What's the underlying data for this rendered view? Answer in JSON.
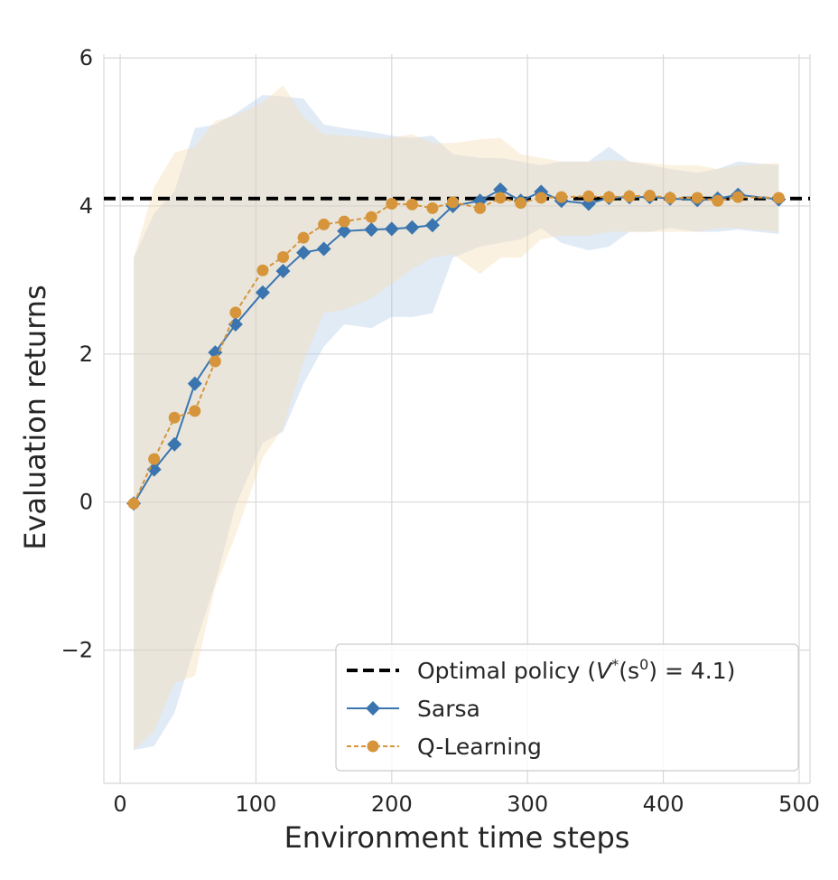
{
  "chart_data": {
    "type": "line",
    "title": "",
    "xlabel": "Environment time steps",
    "ylabel": "Evaluation returns",
    "xlim": [
      -12,
      508
    ],
    "ylim": [
      -3.8,
      6.05
    ],
    "grid": true,
    "legend_position": "lower-right",
    "x_ticks": [
      {
        "value": 0,
        "label": "0"
      },
      {
        "value": 100,
        "label": "100"
      },
      {
        "value": 200,
        "label": "200"
      },
      {
        "value": 300,
        "label": "300"
      },
      {
        "value": 400,
        "label": "400"
      },
      {
        "value": 500,
        "label": "500"
      }
    ],
    "y_ticks": [
      {
        "value": -2,
        "label": "−2"
      },
      {
        "value": 0,
        "label": "0"
      },
      {
        "value": 2,
        "label": "2"
      },
      {
        "value": 4,
        "label": "4"
      },
      {
        "value": 6,
        "label": "6"
      }
    ],
    "optimal": {
      "name_prefix": "Optimal policy (",
      "name_math": "V",
      "name_sup": "*",
      "name_arg": "(s",
      "name_arg_sup": "0",
      "name_value": ") = 4.1)",
      "value": 4.1,
      "color": "#000000"
    },
    "series": [
      {
        "name": "Sarsa",
        "color": "#3a75b0",
        "marker": "diamond",
        "line_style": "solid",
        "band_color": "#a9c6e5",
        "x": [
          10,
          25,
          40,
          55,
          70,
          85,
          105,
          120,
          135,
          150,
          165,
          185,
          200,
          215,
          230,
          245,
          265,
          280,
          295,
          310,
          325,
          345,
          360,
          375,
          390,
          405,
          425,
          440,
          455,
          485
        ],
        "y": [
          -0.02,
          0.44,
          0.78,
          1.6,
          2.02,
          2.4,
          2.83,
          3.12,
          3.37,
          3.42,
          3.66,
          3.68,
          3.69,
          3.71,
          3.74,
          4.0,
          4.07,
          4.22,
          4.07,
          4.19,
          4.07,
          4.03,
          4.11,
          4.12,
          4.12,
          4.1,
          4.08,
          4.1,
          4.15,
          4.09
        ],
        "y_low": [
          -3.35,
          -3.3,
          -2.85,
          -1.95,
          -1.1,
          -0.05,
          0.8,
          0.95,
          1.6,
          2.1,
          2.4,
          2.35,
          2.5,
          2.5,
          2.55,
          3.3,
          3.45,
          3.5,
          3.55,
          3.7,
          3.5,
          3.4,
          3.45,
          3.65,
          3.65,
          3.7,
          3.65,
          3.65,
          3.68,
          3.62
        ],
        "y_high": [
          3.3,
          3.9,
          4.2,
          5.05,
          5.1,
          5.25,
          5.5,
          5.48,
          5.45,
          5.1,
          5.05,
          5.0,
          4.95,
          4.92,
          4.95,
          4.7,
          4.65,
          4.65,
          4.6,
          4.55,
          4.6,
          4.6,
          4.8,
          4.6,
          4.55,
          4.5,
          4.45,
          4.5,
          4.6,
          4.55
        ]
      },
      {
        "name": "Q-Learning",
        "color": "#d6953b",
        "marker": "circle",
        "line_style": "dashed",
        "band_color": "#f6ddb4",
        "x": [
          10,
          25,
          40,
          55,
          70,
          85,
          105,
          120,
          135,
          150,
          165,
          185,
          200,
          215,
          230,
          245,
          265,
          280,
          295,
          310,
          325,
          345,
          360,
          375,
          390,
          405,
          425,
          440,
          455,
          485
        ],
        "y": [
          -0.02,
          0.58,
          1.14,
          1.23,
          1.9,
          2.56,
          3.13,
          3.31,
          3.57,
          3.75,
          3.79,
          3.85,
          4.03,
          4.02,
          3.97,
          4.05,
          3.97,
          4.11,
          4.04,
          4.11,
          4.12,
          4.13,
          4.12,
          4.13,
          4.14,
          4.11,
          4.11,
          4.07,
          4.12,
          4.11
        ],
        "y_low": [
          -3.35,
          -3.1,
          -2.45,
          -2.35,
          -1.15,
          -0.45,
          0.6,
          1.0,
          1.9,
          2.55,
          2.6,
          2.75,
          2.95,
          3.15,
          3.3,
          3.35,
          3.08,
          3.3,
          3.3,
          3.55,
          3.6,
          3.6,
          3.65,
          3.65,
          3.65,
          3.65,
          3.65,
          3.7,
          3.7,
          3.65
        ],
        "y_high": [
          3.3,
          4.25,
          4.72,
          4.8,
          5.15,
          5.22,
          5.4,
          5.63,
          5.2,
          4.97,
          4.95,
          4.92,
          4.92,
          4.97,
          4.85,
          4.85,
          4.9,
          4.92,
          4.7,
          4.65,
          4.6,
          4.6,
          4.62,
          4.6,
          4.58,
          4.55,
          4.55,
          4.5,
          4.55,
          4.58
        ]
      }
    ]
  }
}
